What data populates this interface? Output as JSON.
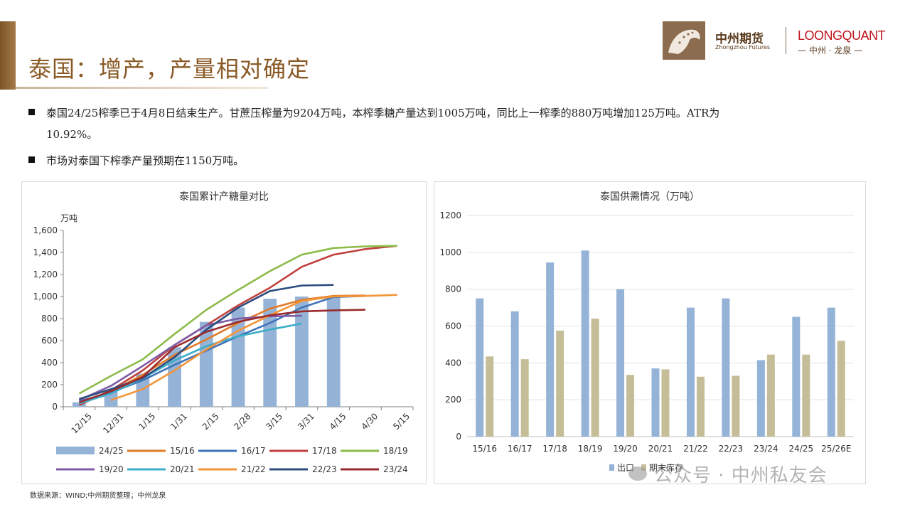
{
  "header": {
    "title": "泰国：增产，产量相对确定",
    "logo_cn": "中州期货",
    "logo_en": "Zhongzhou Futures",
    "partner_name": "LOONGQUANT",
    "partner_sub": "— 中州 · 龙泉 —"
  },
  "bullets": [
    {
      "line1": "泰国24/25榨季已于4月8日结束生产。甘蔗压榨量为9204万吨，本榨季糖产量达到1005万吨，同比上一榨季的880万吨增加125万吨。ATR为",
      "line2": "10.92%。"
    },
    {
      "line1": "市场对泰国下榨季产量预期在1150万吨。"
    }
  ],
  "source": "数据来源：WIND;中州期货整理；中州龙泉",
  "watermark": "公众号 · 中州私友会",
  "chart_data": [
    {
      "type": "bar+line",
      "title": "泰国累计产糖量对比",
      "ylabel": "万吨",
      "ylim": [
        0,
        1600
      ],
      "yticks": [
        "0",
        "200",
        "400",
        "600",
        "800",
        "1,000",
        "1,200",
        "1,400",
        "1,600"
      ],
      "categories": [
        "12/15",
        "12/31",
        "1/15",
        "1/31",
        "2/15",
        "2/28",
        "3/15",
        "3/31",
        "4/15",
        "4/30",
        "5/15"
      ],
      "bar_series": {
        "name": "24/25",
        "color": "#95b3d7",
        "values": [
          40,
          150,
          300,
          540,
          770,
          900,
          980,
          1000,
          1005,
          null,
          null
        ]
      },
      "line_series": [
        {
          "name": "15/16",
          "color": "#e07b2a",
          "values": [
            30,
            140,
            290,
            470,
            610,
            760,
            890,
            970,
            1005,
            1010,
            null
          ]
        },
        {
          "name": "16/17",
          "color": "#3e74b8",
          "values": [
            50,
            130,
            240,
            380,
            510,
            640,
            760,
            900,
            995,
            1005,
            null
          ]
        },
        {
          "name": "17/18",
          "color": "#c0403c",
          "values": [
            15,
            150,
            330,
            560,
            740,
            920,
            1080,
            1270,
            1380,
            1430,
            1460
          ]
        },
        {
          "name": "18/19",
          "color": "#8cbb4a",
          "values": [
            120,
            280,
            430,
            660,
            880,
            1060,
            1230,
            1380,
            1440,
            1455,
            1460
          ]
        },
        {
          "name": "19/20",
          "color": "#7d5ba6",
          "values": [
            60,
            190,
            370,
            560,
            740,
            800,
            820,
            825,
            null,
            null,
            null
          ]
        },
        {
          "name": "20/21",
          "color": "#3cadc8",
          "values": [
            30,
            120,
            260,
            420,
            550,
            640,
            700,
            755,
            null,
            null,
            null
          ]
        },
        {
          "name": "21/22",
          "color": "#f39438",
          "values": [
            null,
            60,
            160,
            330,
            520,
            690,
            830,
            960,
            1000,
            1005,
            1015
          ]
        },
        {
          "name": "22/23",
          "color": "#2c4d7e",
          "values": [
            70,
            160,
            260,
            450,
            700,
            900,
            1050,
            1100,
            1105,
            null,
            null
          ]
        },
        {
          "name": "23/24",
          "color": "#9b2b2e",
          "values": [
            40,
            140,
            270,
            540,
            680,
            770,
            830,
            865,
            875,
            880,
            null
          ]
        }
      ],
      "legend_position": "bottom"
    },
    {
      "type": "bar",
      "title": "泰国供需情况（万吨）",
      "ylim": [
        0,
        1200
      ],
      "yticks": [
        "0",
        "200",
        "400",
        "600",
        "800",
        "1000",
        "1200"
      ],
      "categories": [
        "15/16",
        "16/17",
        "17/18",
        "18/19",
        "19/20",
        "20/21",
        "21/22",
        "22/23",
        "23/24",
        "24/25",
        "25/26E"
      ],
      "series": [
        {
          "name": "出口",
          "color": "#95b3d7",
          "values": [
            750,
            680,
            945,
            1010,
            800,
            370,
            700,
            750,
            415,
            650,
            700
          ]
        },
        {
          "name": "期末库存",
          "color": "#c4bd97",
          "values": [
            435,
            420,
            575,
            640,
            335,
            365,
            325,
            330,
            445,
            445,
            520
          ]
        }
      ],
      "grid": true,
      "legend_position": "bottom"
    }
  ]
}
